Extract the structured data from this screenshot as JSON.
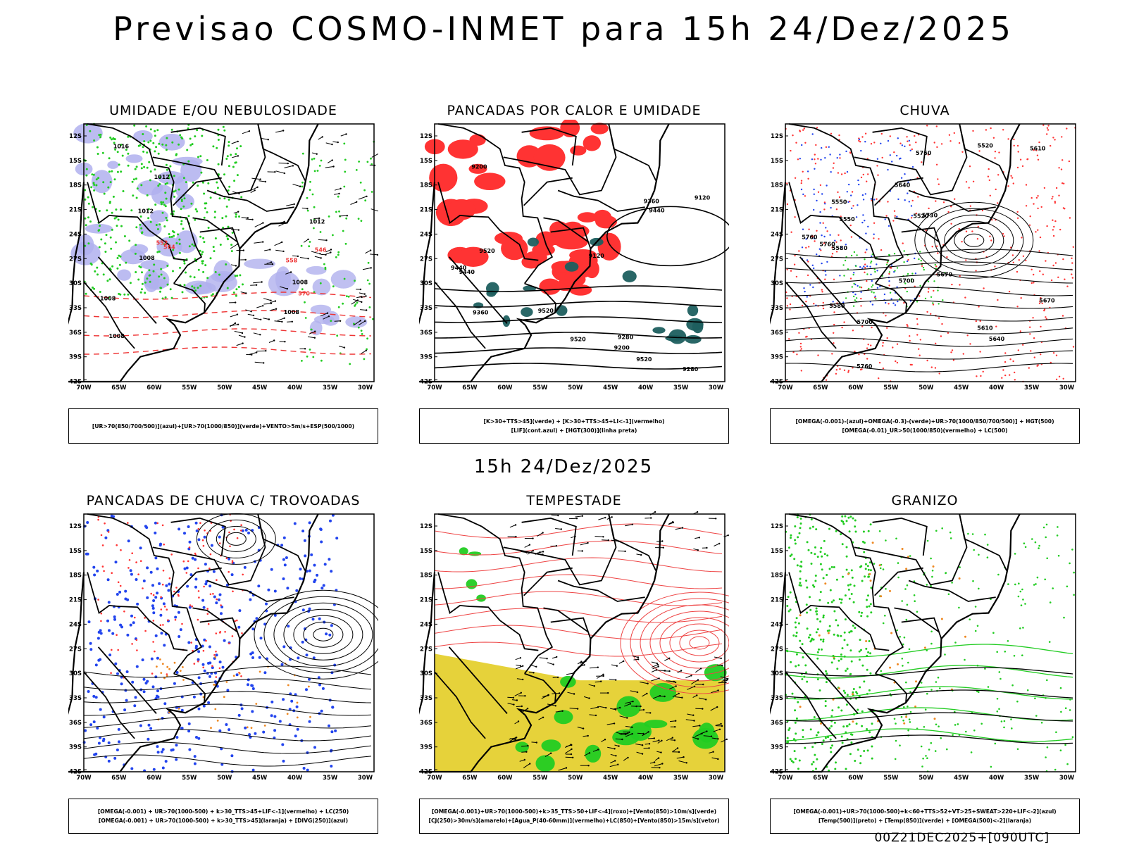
{
  "header": {
    "title": "Previsao COSMO-INMET  para 15h 24/Dez/2025"
  },
  "subheader": {
    "time": "15h 24/Dez/2025"
  },
  "footer": {
    "run": "00Z21DEC2025+[090UTC]"
  },
  "axes": {
    "lat_labels": [
      "12S",
      "15S",
      "18S",
      "21S",
      "24S",
      "27S",
      "30S",
      "33S",
      "36S",
      "39S",
      "42S"
    ],
    "lon_labels": [
      "70W",
      "65W",
      "60W",
      "55W",
      "50W",
      "45W",
      "40W",
      "35W",
      "30W"
    ]
  },
  "colors": {
    "green": "#22cc22",
    "red": "#ff3333",
    "blue": "#2244ee",
    "lavender": "#b0b0ee",
    "orange": "#ee8822",
    "yellow": "#e6d23a",
    "teal": "#1d5f5f"
  },
  "panels": [
    {
      "title": "UMIDADE E/OU NEBULOSIDADE",
      "legend": [
        "[UR>70(850/700/500)](azul)+[UR>70(1000/850)](verde)+VENTO>5m/s+ESP(500/1000)"
      ],
      "contour_labels": [
        "1008",
        "1008",
        "1008",
        "1008",
        "1012",
        "1012",
        "1016",
        "570",
        "564",
        "558",
        "552",
        "546",
        "1008",
        "1012"
      ]
    },
    {
      "title": "PANCADAS POR CALOR E UMIDADE",
      "legend": [
        "[K>30+TTS>45](verde) + [K>30+TTS>45+LI<-1](vermelho)",
        "[LIF](cont.azul) + [HGT(300)](linha preta)"
      ],
      "contour_labels": [
        "9440",
        "9520",
        "9520",
        "9520",
        "9520",
        "9440",
        "9440",
        "9360",
        "9360",
        "9280",
        "9280",
        "9200",
        "9200",
        "9120",
        "9120"
      ]
    },
    {
      "title": "CHUVA",
      "legend": [
        "[OMEGA(-0.001)-(azul)+OMEGA(-0.3)-(verde)+UR>70(1000/850/700/500)] + HGT(500)",
        "[OMEGA(-0.01)_UR>50(1000/850)(vermelho) + LC(500)"
      ],
      "contour_labels": [
        "5760",
        "5760",
        "5760",
        "5760",
        "5730",
        "5700",
        "5670",
        "5640",
        "5610",
        "5580",
        "5550",
        "5520",
        "5700",
        "5670",
        "5640",
        "5610",
        "5580",
        "5550",
        "5520"
      ]
    },
    {
      "title": "PANCADAS DE CHUVA C/ TROVOADAS",
      "legend": [
        "[OMEGA(-0.001) + UR>70(1000-500) + k>30_TTS>45+LIF<-1](vermelho) + LC(250)",
        "[OMEGA(-0.001) + UR>70(1000-500) + k>30_TTS>45](laranja) + [DIVG(250)](azul)"
      ],
      "contour_labels": []
    },
    {
      "title": "TEMPESTADE",
      "legend": [
        "[OMEGA(-0.001)+UR>70(1000-500)+k>35_TTS>50+LIF<-4](roxo)+[Vento(850)>10m/s](verde)",
        "[CJ(250)>30m/s](amarelo)+[Agua_P(40-60mm)](vermelho)+LC(850)+[Vento(850)>15m/s](vetor)"
      ],
      "contour_labels": []
    },
    {
      "title": "GRANIZO",
      "legend": [
        "[OMEGA(-0.001)+UR>70(1000-500)+k<60+TTS>52+VT>25+SWEAT>220+LIF<-2](azul)",
        "[Temp(500)](preto) + [Temp(850)](verde) + [OMEGA(500)<-2](laranja)"
      ],
      "contour_labels": []
    }
  ]
}
